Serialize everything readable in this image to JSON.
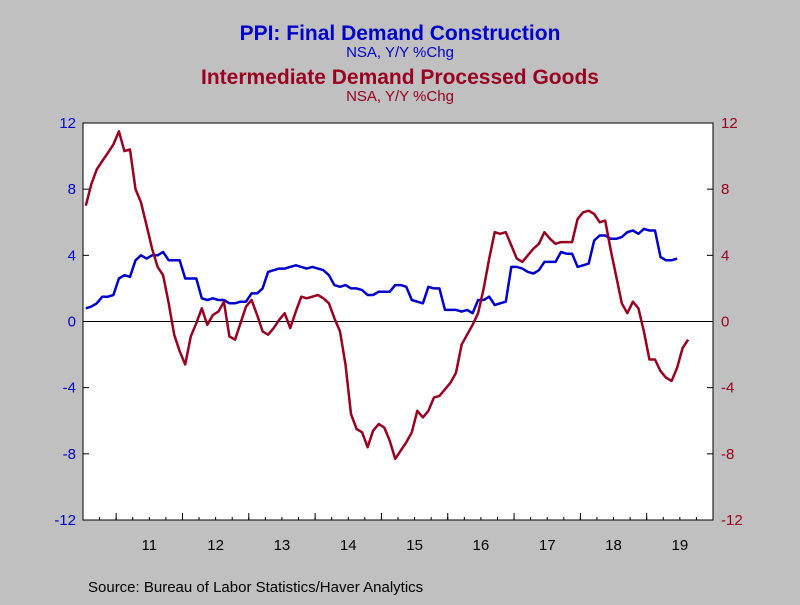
{
  "chart_data": {
    "type": "line",
    "title_1": "PPI: Final Demand Construction",
    "subtitle_1": "NSA, Y/Y %Chg",
    "title_2": "Intermediate Demand Processed Goods",
    "subtitle_2": "NSA, Y/Y %Chg",
    "source": "Source:  Bureau of Labor Statistics/Haver Analytics",
    "ylim": [
      -12,
      12
    ],
    "y_ticks": [
      "12",
      "8",
      "4",
      "0",
      "-4",
      "-8",
      "-12"
    ],
    "y_tick_values": [
      12,
      8,
      4,
      0,
      -4,
      -8,
      -12
    ],
    "x_start": "2010-07",
    "x_end": "2019-12",
    "x_tick_labels": [
      "11",
      "12",
      "13",
      "14",
      "15",
      "16",
      "17",
      "18",
      "19"
    ],
    "grid": false,
    "colors": {
      "background": "#c0c0c0",
      "plot_area": "#ffffff",
      "axis": "#000000",
      "construction": "#0000cc",
      "processed_goods": "#990022"
    },
    "series": [
      {
        "name": "PPI: Final Demand Construction",
        "color": "#0000cc",
        "values": [
          0.8,
          0.9,
          1.1,
          1.5,
          1.5,
          1.6,
          2.6,
          2.8,
          2.7,
          3.7,
          4.0,
          3.8,
          4.0,
          4.0,
          4.2,
          3.7,
          3.7,
          3.7,
          2.6,
          2.6,
          2.6,
          1.4,
          1.3,
          1.4,
          1.3,
          1.3,
          1.1,
          1.1,
          1.2,
          1.2,
          1.7,
          1.7,
          2.0,
          3.0,
          3.1,
          3.2,
          3.2,
          3.3,
          3.4,
          3.3,
          3.2,
          3.3,
          3.2,
          3.1,
          2.8,
          2.2,
          2.1,
          2.2,
          2.0,
          2.0,
          1.9,
          1.6,
          1.6,
          1.8,
          1.8,
          1.8,
          2.2,
          2.2,
          2.1,
          1.3,
          1.2,
          1.1,
          2.1,
          2.0,
          2.0,
          0.7,
          0.7,
          0.7,
          0.6,
          0.7,
          0.5,
          1.3,
          1.3,
          1.5,
          1.0,
          1.1,
          1.2,
          3.3,
          3.3,
          3.2,
          3.0,
          2.9,
          3.1,
          3.6,
          3.6,
          3.6,
          4.2,
          4.1,
          4.1,
          3.3,
          3.4,
          3.5,
          4.9,
          5.2,
          5.2,
          5.0,
          5.0,
          5.1,
          5.4,
          5.5,
          5.3,
          5.6,
          5.5,
          5.5,
          3.9,
          3.7,
          3.7,
          3.8
        ]
      },
      {
        "name": "Intermediate Demand Processed Goods",
        "color": "#990022",
        "values": [
          7.0,
          8.3,
          9.2,
          9.7,
          10.2,
          10.7,
          11.5,
          10.3,
          10.4,
          8.0,
          7.2,
          5.8,
          4.4,
          3.3,
          2.8,
          1.1,
          -0.8,
          -1.8,
          -2.6,
          -0.9,
          -0.1,
          0.8,
          -0.2,
          0.4,
          0.6,
          1.2,
          -0.9,
          -1.1,
          -0.1,
          0.9,
          1.3,
          0.4,
          -0.6,
          -0.8,
          -0.4,
          0.1,
          0.5,
          -0.4,
          0.6,
          1.5,
          1.4,
          1.5,
          1.6,
          1.4,
          1.1,
          0.2,
          -0.6,
          -2.6,
          -5.6,
          -6.5,
          -6.7,
          -7.6,
          -6.6,
          -6.2,
          -6.4,
          -7.2,
          -8.3,
          -7.8,
          -7.3,
          -6.7,
          -5.4,
          -5.8,
          -5.4,
          -4.6,
          -4.5,
          -4.1,
          -3.7,
          -3.1,
          -1.4,
          -0.8,
          -0.2,
          0.5,
          2.0,
          3.8,
          5.4,
          5.3,
          5.4,
          4.6,
          3.8,
          3.6,
          4.0,
          4.4,
          4.7,
          5.4,
          5.0,
          4.7,
          4.8,
          4.8,
          4.8,
          6.2,
          6.6,
          6.7,
          6.5,
          6.0,
          6.1,
          4.3,
          2.7,
          1.1,
          0.5,
          1.2,
          0.8,
          -0.6,
          -2.3,
          -2.3,
          -3.0,
          -3.4,
          -3.6,
          -2.8,
          -1.6,
          -1.1
        ]
      }
    ]
  }
}
